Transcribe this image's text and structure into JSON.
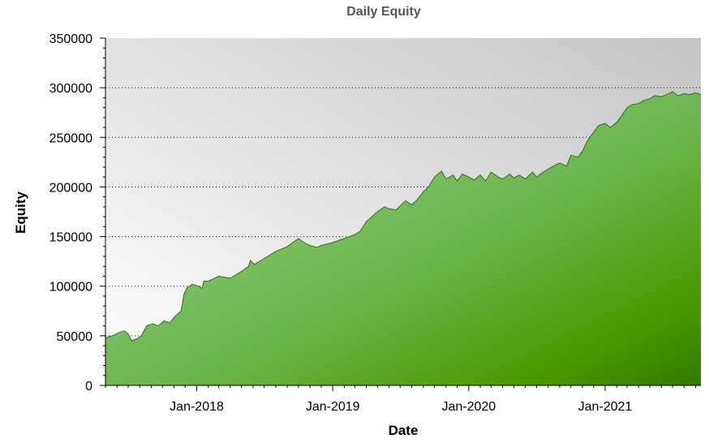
{
  "chart_data": {
    "type": "area",
    "title": "Daily Equity",
    "xlabel": "Date",
    "ylabel": "Equity",
    "ylim": [
      0,
      350000
    ],
    "xlim": [
      "2017-05-01",
      "2021-09-15"
    ],
    "yticks": [
      0,
      50000,
      100000,
      150000,
      200000,
      250000,
      300000,
      350000
    ],
    "ytick_labels": [
      "0",
      "50000",
      "100000",
      "150000",
      "200000",
      "250000",
      "300000",
      "350000"
    ],
    "xticks": [
      "2018-01-01",
      "2019-01-01",
      "2020-01-01",
      "2021-01-01"
    ],
    "xtick_labels": [
      "Jan-2018",
      "Jan-2019",
      "Jan-2020",
      "Jan-2021"
    ],
    "grid": "horizontal dotted",
    "x": [
      "2017-05-01",
      "2017-05-20",
      "2017-06-05",
      "2017-06-20",
      "2017-07-01",
      "2017-07-10",
      "2017-07-25",
      "2017-08-05",
      "2017-08-20",
      "2017-09-05",
      "2017-09-20",
      "2017-10-05",
      "2017-10-20",
      "2017-11-05",
      "2017-11-20",
      "2017-11-28",
      "2017-12-05",
      "2017-12-20",
      "2018-01-05",
      "2018-01-15",
      "2018-01-20",
      "2018-02-01",
      "2018-03-01",
      "2018-04-01",
      "2018-05-01",
      "2018-05-20",
      "2018-05-25",
      "2018-06-05",
      "2018-07-01",
      "2018-08-01",
      "2018-09-01",
      "2018-10-01",
      "2018-10-20",
      "2018-11-01",
      "2018-11-20",
      "2018-12-01",
      "2019-01-01",
      "2019-02-01",
      "2019-03-01",
      "2019-03-15",
      "2019-04-01",
      "2019-05-01",
      "2019-05-20",
      "2019-06-01",
      "2019-06-20",
      "2019-07-15",
      "2019-08-01",
      "2019-08-15",
      "2019-09-01",
      "2019-09-15",
      "2019-10-01",
      "2019-10-20",
      "2019-11-01",
      "2019-11-20",
      "2019-12-01",
      "2019-12-15",
      "2020-01-01",
      "2020-01-15",
      "2020-02-01",
      "2020-02-15",
      "2020-03-01",
      "2020-03-20",
      "2020-04-01",
      "2020-04-20",
      "2020-05-01",
      "2020-05-15",
      "2020-06-01",
      "2020-06-20",
      "2020-07-01",
      "2020-07-15",
      "2020-08-01",
      "2020-08-20",
      "2020-09-01",
      "2020-09-20",
      "2020-10-01",
      "2020-10-20",
      "2020-11-01",
      "2020-11-15",
      "2020-12-01",
      "2020-12-15",
      "2021-01-01",
      "2021-01-15",
      "2021-02-01",
      "2021-02-15",
      "2021-03-01",
      "2021-03-15",
      "2021-04-01",
      "2021-04-15",
      "2021-05-01",
      "2021-05-15",
      "2021-06-01",
      "2021-06-15",
      "2021-07-01",
      "2021-07-15",
      "2021-08-01",
      "2021-08-15",
      "2021-09-01",
      "2021-09-15"
    ],
    "series": [
      {
        "values": [
          48000,
          50000,
          53000,
          55000,
          52000,
          45000,
          47000,
          50000,
          60000,
          62000,
          60000,
          65000,
          63000,
          70000,
          75000,
          92000,
          98000,
          102000,
          100000,
          98000,
          105000,
          105000,
          110000,
          108000,
          115000,
          120000,
          126000,
          122000,
          128000,
          135000,
          140000,
          148000,
          143000,
          141000,
          139000,
          141000,
          144000,
          148000,
          152000,
          155000,
          165000,
          175000,
          180000,
          178000,
          177000,
          186000,
          182000,
          187000,
          195000,
          200000,
          210000,
          216000,
          208000,
          212000,
          206000,
          213000,
          210000,
          207000,
          212000,
          206000,
          215000,
          210000,
          208000,
          213000,
          209000,
          212000,
          208000,
          215000,
          210000,
          214000,
          218000,
          222000,
          224000,
          221000,
          232000,
          230000,
          236000,
          247000,
          255000,
          262000,
          264000,
          260000,
          265000,
          272000,
          280000,
          283000,
          284000,
          287000,
          289000,
          292000,
          291000,
          293000,
          296000,
          292000,
          294000,
          293000,
          295000,
          293000
        ]
      }
    ]
  }
}
